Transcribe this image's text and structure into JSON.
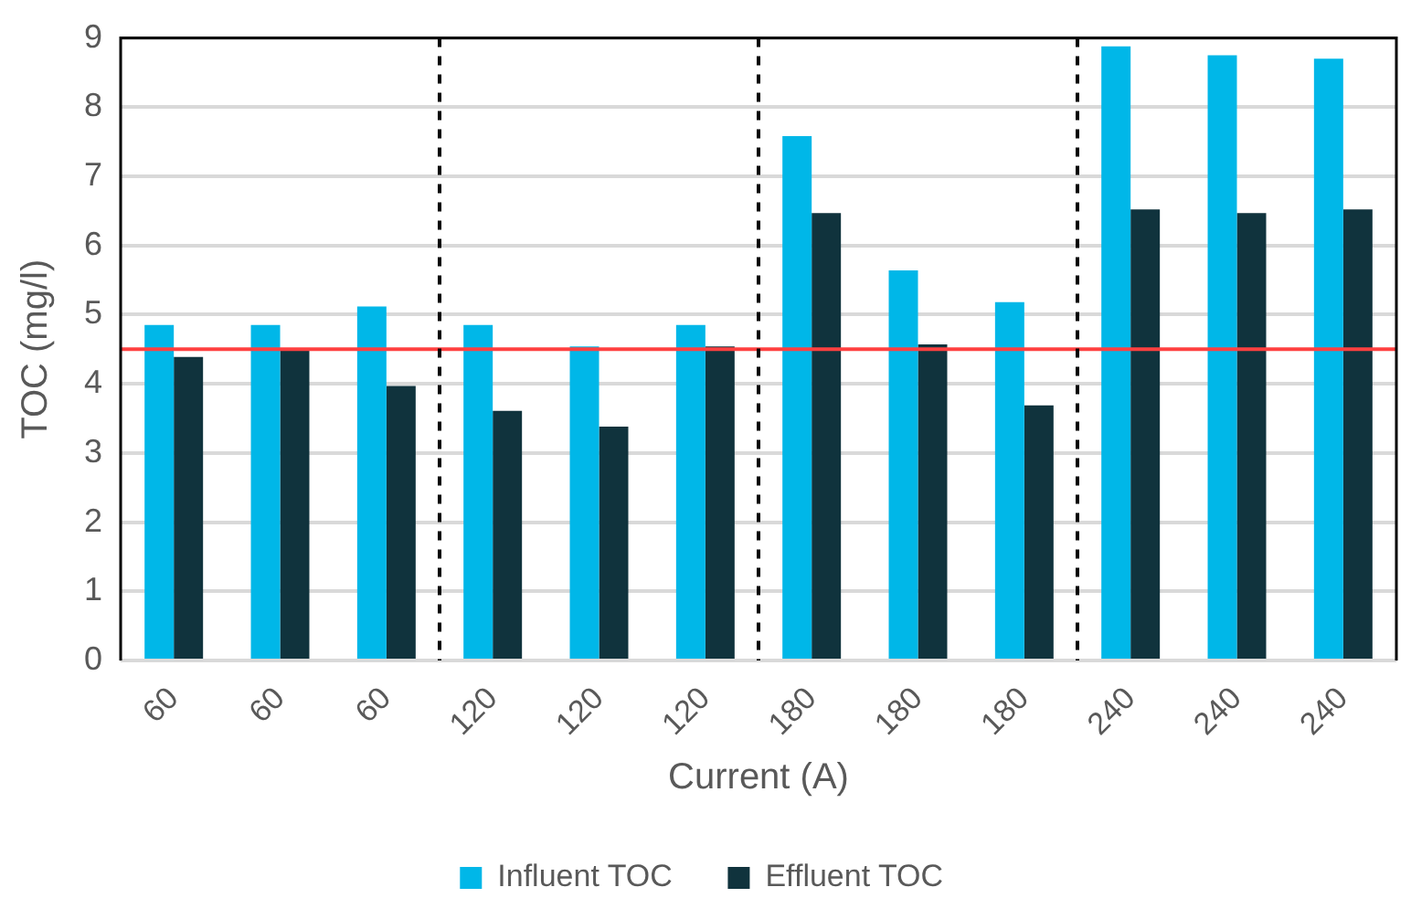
{
  "chart_data": {
    "type": "bar",
    "xlabel": "Current (A)",
    "ylabel": "TOC (mg/l)",
    "categories": [
      "60",
      "60",
      "60",
      "120",
      "120",
      "120",
      "180",
      "180",
      "180",
      "240",
      "240",
      "240"
    ],
    "series": [
      {
        "name": "Influent TOC",
        "color": "#00b7e8",
        "values": [
          4.85,
          4.85,
          5.12,
          4.85,
          4.54,
          4.85,
          7.58,
          5.64,
          5.18,
          8.88,
          8.75,
          8.7
        ]
      },
      {
        "name": "Effluent TOC",
        "color": "#10333d",
        "values": [
          4.39,
          4.51,
          3.97,
          3.61,
          3.38,
          4.54,
          6.47,
          4.57,
          3.69,
          6.52,
          6.47,
          6.52
        ]
      }
    ],
    "ylim": [
      0,
      9
    ],
    "yticks": [
      0,
      1,
      2,
      3,
      4,
      5,
      6,
      7,
      8,
      9
    ],
    "grid": "y",
    "legend": "bottom",
    "ref_lines": [
      {
        "axis": "y",
        "value": 4.5,
        "color": "#ff4040",
        "line_style": "solid"
      }
    ]
  }
}
